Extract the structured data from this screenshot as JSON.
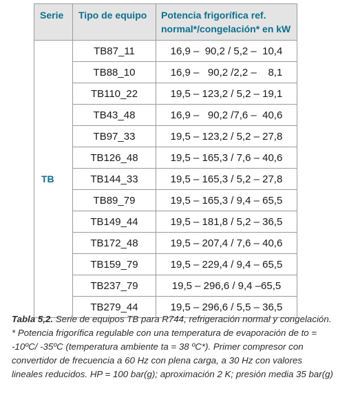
{
  "table": {
    "headers": {
      "serie": "Serie",
      "tipo": "Tipo de equipo",
      "potencia": "Potencia frigorífica ref.\nnormal*/congelación* en kW"
    },
    "serie_value": "TB",
    "rows": [
      {
        "tipo": "TB87_11",
        "potencia": "16,9 –  90,2 / 5,2 –  10,4"
      },
      {
        "tipo": "TB88_10",
        "potencia": "16,9 –   90,2 /2,2 –    8,1"
      },
      {
        "tipo": "TB110_22",
        "potencia": "19,5 – 123,2 / 5,2 – 19,1"
      },
      {
        "tipo": "TB43_48",
        "potencia": "16,9 –   90,2 /7,6 –  40,6"
      },
      {
        "tipo": "TB97_33",
        "potencia": "19,5 – 123,2 / 5,2 – 27,8"
      },
      {
        "tipo": "TB126_48",
        "potencia": "19,5 – 165,3 / 7,6 – 40,6"
      },
      {
        "tipo": "TB144_33",
        "potencia": "19,5 – 165,3 / 5,2 – 27,8"
      },
      {
        "tipo": "TB89_79",
        "potencia": "19,5 – 165,3 / 9,4 – 65,5"
      },
      {
        "tipo": "TB149_44",
        "potencia": "19,5 – 181,8 / 5,2 – 36,5"
      },
      {
        "tipo": "TB172_48",
        "potencia": "19,5 – 207,4 / 7,6 – 40,6"
      },
      {
        "tipo": "TB159_79",
        "potencia": "19,5 – 229,4 / 9,4 – 65,5"
      },
      {
        "tipo": "TB237_79",
        "potencia": "19,5 – 296,6 / 9,4 –65,5"
      },
      {
        "tipo": "TB279_44",
        "potencia": "19,5 – 296,6 / 5,5 – 36,5"
      }
    ]
  },
  "caption": {
    "label": "Tabla 5,2.",
    "text": " Serie de equipos TB para R744, refrigeración normal y congelación. * Potencia frigorífica regulable con una temperatura de evaporación de to = -10ºC/ -35ºC (temperatura ambiente ta = 38 ºC*). Primer compresor con convertidor de frecuencia a 60 Hz con plena carga, a 30 Hz con valores lineales reducidos. HP = 100 bar(g); aproximación 2 K; presión media 35 bar(g)"
  }
}
